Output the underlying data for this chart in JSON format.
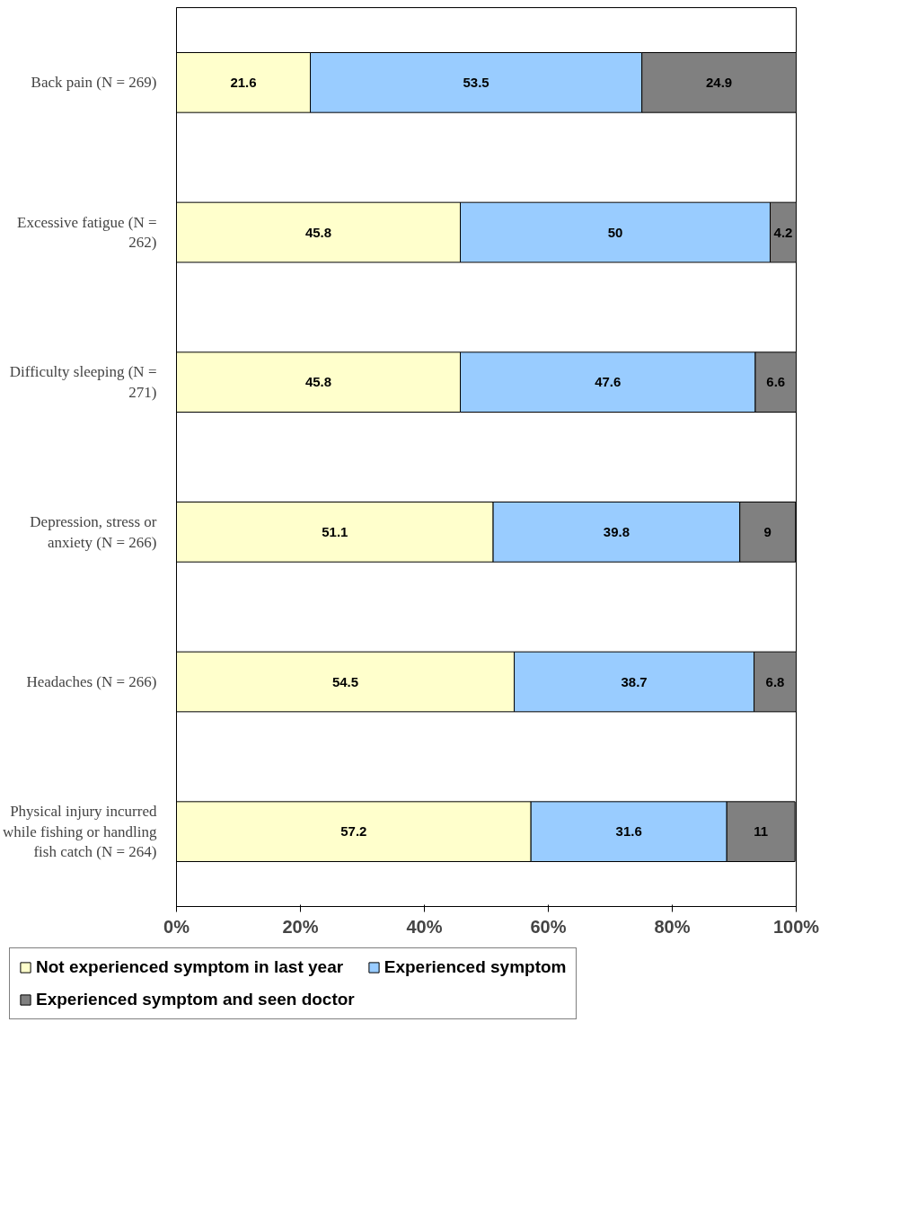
{
  "chart_data": {
    "type": "bar",
    "orientation": "horizontal",
    "stacked": true,
    "data_labels": true,
    "grid": false,
    "legend": "bottom",
    "categories": [
      "Back pain (N = 269)",
      "Excessive fatigue (N = 262)",
      "Difficulty sleeping (N = 271)",
      "Depression, stress or anxiety (N = 266)",
      "Headaches (N = 266)",
      "Physical injury incurred while fishing or handling fish catch (N = 264)"
    ],
    "series": [
      {
        "name": "Not experienced symptom in last year",
        "color": "#ffffcc",
        "values": [
          21.6,
          45.8,
          45.8,
          51.1,
          54.5,
          57.2
        ]
      },
      {
        "name": "Experienced symptom",
        "color": "#99ccff",
        "values": [
          53.5,
          50,
          47.6,
          39.8,
          38.7,
          31.6
        ]
      },
      {
        "name": "Experienced symptom and seen doctor",
        "color": "#808080",
        "values": [
          24.9,
          4.2,
          6.6,
          9,
          6.8,
          11
        ]
      }
    ],
    "xlim": [
      0,
      100
    ],
    "xticks": [
      {
        "value": 0,
        "label": "0%"
      },
      {
        "value": 20,
        "label": "20%"
      },
      {
        "value": 40,
        "label": "40%"
      },
      {
        "value": 60,
        "label": "60%"
      },
      {
        "value": 80,
        "label": "80%"
      },
      {
        "value": 100,
        "label": "100%"
      }
    ]
  }
}
